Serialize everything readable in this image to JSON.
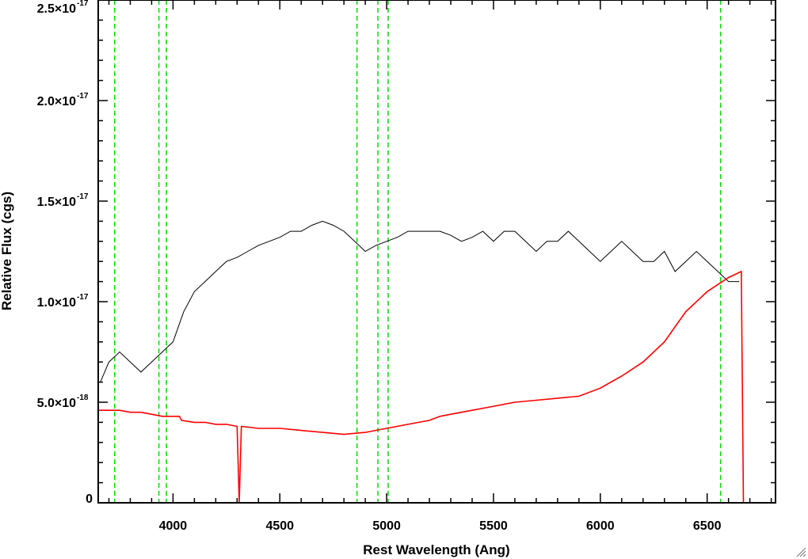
{
  "chart_data": {
    "type": "line",
    "xlabel": "Rest Wavelength (Ang)",
    "ylabel": "Relative Flux (cgs)",
    "xlim": [
      3650,
      6820
    ],
    "ylim": [
      0,
      2.5e-17
    ],
    "xticks": [
      {
        "value": 4000,
        "label": "4000"
      },
      {
        "value": 4500,
        "label": "4500"
      },
      {
        "value": 5000,
        "label": "5000"
      },
      {
        "value": 5500,
        "label": "5500"
      },
      {
        "value": 6000,
        "label": "6000"
      },
      {
        "value": 6500,
        "label": "6500"
      }
    ],
    "yticks": [
      {
        "value": 0,
        "mantissa": "0",
        "exponent": ""
      },
      {
        "value": 5e-18,
        "mantissa": "5.0×10",
        "exponent": "-18"
      },
      {
        "value": 1e-17,
        "mantissa": "1.0×10",
        "exponent": "-17"
      },
      {
        "value": 1.5e-17,
        "mantissa": "1.5×10",
        "exponent": "-17"
      },
      {
        "value": 2e-17,
        "mantissa": "2.0×10",
        "exponent": "-17"
      },
      {
        "value": 2.5e-17,
        "mantissa": "2.5×10",
        "exponent": "-17"
      }
    ],
    "grid": false,
    "reference_lines": {
      "color": "#00dd00",
      "style": "dashed",
      "x": [
        3727,
        3934,
        3969,
        4861,
        4959,
        5007,
        6563
      ]
    },
    "series": [
      {
        "color": "#000000",
        "description_points": "observed spectrum (noisy)",
        "x": [
          3660,
          3700,
          3750,
          3800,
          3850,
          3900,
          3950,
          4000,
          4050,
          4100,
          4150,
          4200,
          4250,
          4300,
          4350,
          4400,
          4450,
          4500,
          4550,
          4600,
          4650,
          4700,
          4750,
          4800,
          4850,
          4900,
          4950,
          5000,
          5050,
          5100,
          5150,
          5200,
          5250,
          5300,
          5350,
          5400,
          5450,
          5500,
          5550,
          5600,
          5650,
          5700,
          5750,
          5800,
          5850,
          5900,
          5950,
          6000,
          6050,
          6100,
          6150,
          6200,
          6250,
          6300,
          6350,
          6400,
          6450,
          6500,
          6550,
          6600,
          6650
        ],
        "y": [
          6e-18,
          7e-18,
          7.5e-18,
          7e-18,
          6.5e-18,
          7e-18,
          7.5e-18,
          8e-18,
          9.5e-18,
          1.05e-17,
          1.1e-17,
          1.15e-17,
          1.2e-17,
          1.22e-17,
          1.25e-17,
          1.28e-17,
          1.3e-17,
          1.32e-17,
          1.35e-17,
          1.35e-17,
          1.38e-17,
          1.4e-17,
          1.38e-17,
          1.35e-17,
          1.3e-17,
          1.25e-17,
          1.28e-17,
          1.3e-17,
          1.32e-17,
          1.35e-17,
          1.35e-17,
          1.35e-17,
          1.35e-17,
          1.33e-17,
          1.3e-17,
          1.32e-17,
          1.35e-17,
          1.3e-17,
          1.35e-17,
          1.35e-17,
          1.3e-17,
          1.25e-17,
          1.3e-17,
          1.3e-17,
          1.35e-17,
          1.3e-17,
          1.25e-17,
          1.2e-17,
          1.25e-17,
          1.3e-17,
          1.25e-17,
          1.2e-17,
          1.2e-17,
          1.25e-17,
          1.15e-17,
          1.2e-17,
          1.25e-17,
          1.2e-17,
          1.15e-17,
          1.1e-17,
          1.1e-17
        ]
      },
      {
        "color": "#ff0000",
        "x": [
          3650,
          3700,
          3750,
          3800,
          3850,
          3900,
          3950,
          4000,
          4030,
          4040,
          4100,
          4150,
          4200,
          4250,
          4300,
          4310,
          4320,
          4400,
          4500,
          4600,
          4700,
          4800,
          4900,
          5000,
          5100,
          5200,
          5250,
          5300,
          5400,
          5500,
          5600,
          5700,
          5800,
          5900,
          6000,
          6100,
          6200,
          6300,
          6400,
          6500,
          6600,
          6660,
          6670,
          6820
        ],
        "y": [
          4.6e-18,
          4.6e-18,
          4.6e-18,
          4.5e-18,
          4.5e-18,
          4.4e-18,
          4.3e-18,
          4.3e-18,
          4.3e-18,
          4.1e-18,
          4e-18,
          4e-18,
          3.9e-18,
          3.9e-18,
          3.8e-18,
          0,
          3.8e-18,
          3.7e-18,
          3.7e-18,
          3.6e-18,
          3.5e-18,
          3.4e-18,
          3.5e-18,
          3.7e-18,
          3.9e-18,
          4.1e-18,
          4.3e-18,
          4.4e-18,
          4.6e-18,
          4.8e-18,
          5e-18,
          5.1e-18,
          5.2e-18,
          5.3e-18,
          5.7e-18,
          6.3e-18,
          7e-18,
          8e-18,
          9.5e-18,
          1.05e-17,
          1.12e-17,
          1.15e-17,
          0,
          0
        ]
      }
    ]
  }
}
